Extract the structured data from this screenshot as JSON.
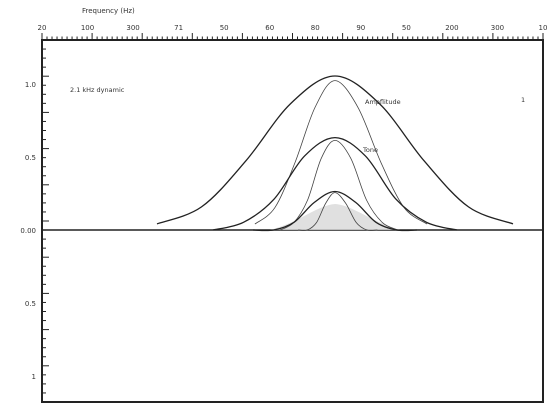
{
  "chart_data": {
    "type": "line",
    "title": "",
    "top_axis_label": "Frequency (Hz)",
    "top_ticks": [
      "20",
      "100",
      "300",
      "71",
      "50",
      "60",
      "80",
      "90",
      "50",
      "200",
      "300",
      "10"
    ],
    "left_ticks": [
      "1.0",
      "0.5",
      "0.00",
      "0.5",
      "1"
    ],
    "legend_note": "2.1 kHz dynamic",
    "annotations": [
      "Ampflitude",
      "Tone"
    ],
    "corner_mark": "1",
    "x": [
      -4,
      -3,
      -2,
      -1,
      0,
      1,
      2,
      3,
      4
    ],
    "series": [
      {
        "values": [
          0.04,
          0.15,
          0.45,
          0.82,
          1.0,
          0.82,
          0.45,
          0.15,
          0.04
        ]
      },
      {
        "values": [
          0.0,
          0.05,
          0.2,
          0.48,
          0.6,
          0.48,
          0.2,
          0.05,
          0.0
        ]
      },
      {
        "values": [
          0.0,
          0.0,
          0.05,
          0.18,
          0.25,
          0.18,
          0.05,
          0.0,
          0.0
        ]
      }
    ],
    "ylim": [
      -1.2,
      1.2
    ],
    "grid": false,
    "legend": "top-left"
  }
}
